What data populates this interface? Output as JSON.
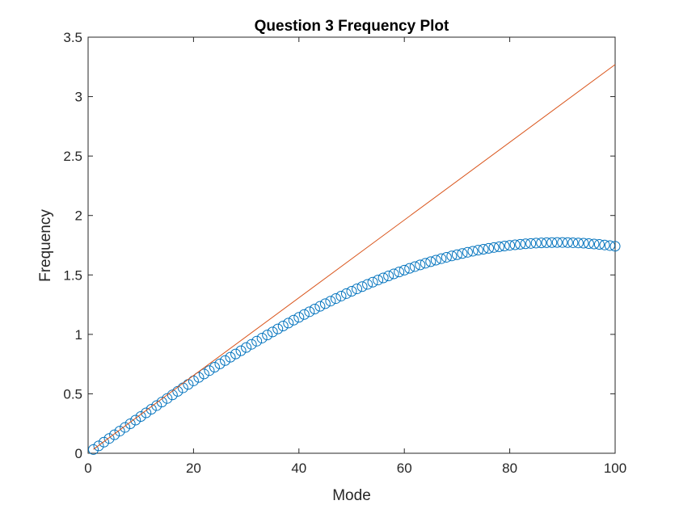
{
  "chart_data": {
    "type": "scatter",
    "title": "Question 3 Frequency Plot",
    "xlabel": "Mode",
    "ylabel": "Frequency",
    "xlim": [
      0,
      100
    ],
    "ylim": [
      0,
      3.5
    ],
    "xticks": [
      0,
      20,
      40,
      60,
      80,
      100
    ],
    "xtick_labels": [
      "0",
      "20",
      "40",
      "60",
      "80",
      "100"
    ],
    "yticks": [
      0,
      0.5,
      1,
      1.5,
      2,
      2.5,
      3,
      3.5
    ],
    "ytick_labels": [
      "0",
      "0.5",
      "1",
      "1.5",
      "2",
      "2.5",
      "3",
      "3.5"
    ],
    "grid": false,
    "box": true,
    "series": [
      {
        "kind": "markers",
        "marker": "circle",
        "color": "#0072BD",
        "x": [
          1,
          2,
          3,
          4,
          5,
          6,
          7,
          8,
          9,
          10,
          11,
          12,
          13,
          14,
          15,
          16,
          17,
          18,
          19,
          20,
          21,
          22,
          23,
          24,
          25,
          26,
          27,
          28,
          29,
          30,
          31,
          32,
          33,
          34,
          35,
          36,
          37,
          38,
          39,
          40,
          41,
          42,
          43,
          44,
          45,
          46,
          47,
          48,
          49,
          50,
          51,
          52,
          53,
          54,
          55,
          56,
          57,
          58,
          59,
          60,
          61,
          62,
          63,
          64,
          65,
          66,
          67,
          68,
          69,
          70,
          71,
          72,
          73,
          74,
          75,
          76,
          77,
          78,
          79,
          80,
          81,
          82,
          83,
          84,
          85,
          86,
          87,
          88,
          89,
          90,
          91,
          92,
          93,
          94,
          95,
          96,
          97,
          98,
          99,
          100
        ],
        "y": [
          0.0311,
          0.0622,
          0.0933,
          0.1243,
          0.1553,
          0.1863,
          0.2171,
          0.248,
          0.2787,
          0.3093,
          0.3399,
          0.3703,
          0.4006,
          0.4308,
          0.4608,
          0.4907,
          0.5205,
          0.5501,
          0.5795,
          0.6087,
          0.6378,
          0.6666,
          0.6953,
          0.7237,
          0.7519,
          0.7799,
          0.8077,
          0.8352,
          0.8624,
          0.8894,
          0.9162,
          0.9426,
          0.9688,
          0.9947,
          1.0203,
          1.0456,
          1.0705,
          1.0952,
          1.1195,
          1.1435,
          1.1671,
          1.1904,
          1.2133,
          1.2358,
          1.258,
          1.2797,
          1.3011,
          1.3221,
          1.3427,
          1.3628,
          1.3826,
          1.4019,
          1.4208,
          1.4392,
          1.4572,
          1.4748,
          1.4919,
          1.5085,
          1.5246,
          1.5403,
          1.5556,
          1.5703,
          1.5845,
          1.5983,
          1.6116,
          1.6243,
          1.6366,
          1.6483,
          1.6596,
          1.6703,
          1.6805,
          1.6902,
          1.6994,
          1.708,
          1.7161,
          1.7237,
          1.7307,
          1.7372,
          1.7432,
          1.7486,
          1.7535,
          1.7578,
          1.7616,
          1.7648,
          1.7675,
          1.7696,
          1.7712,
          1.7722,
          1.7727,
          1.7726,
          1.7719,
          1.7707,
          1.769,
          1.7667,
          1.7638,
          1.7604,
          1.7565,
          1.752,
          1.747,
          1.7414
        ]
      },
      {
        "kind": "line",
        "color": "#D95319",
        "x": [
          1,
          100
        ],
        "y": [
          0.0327,
          3.27
        ]
      }
    ]
  },
  "colors": {
    "axis": "#262626",
    "markers": "#0072BD",
    "line": "#D95319",
    "background": "#ffffff"
  }
}
